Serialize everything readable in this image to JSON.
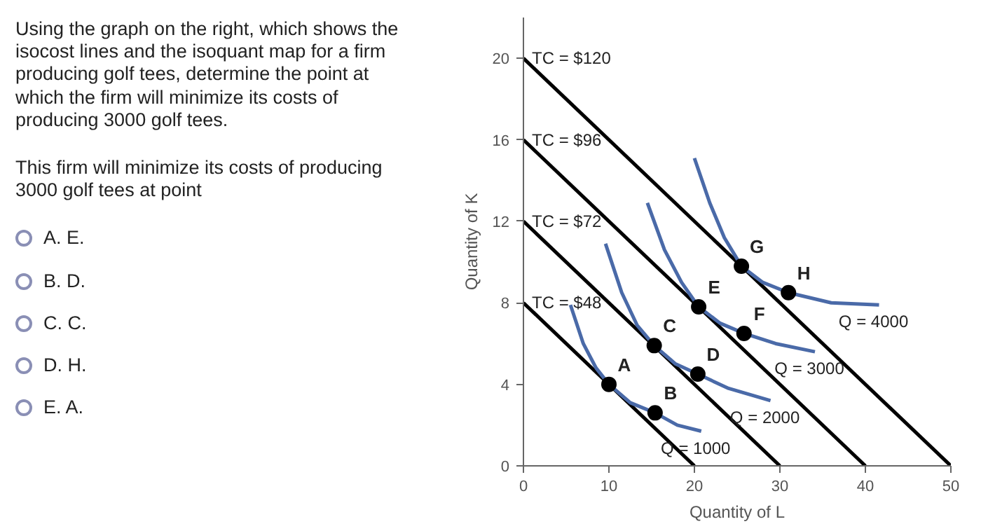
{
  "chart_data": {
    "type": "line",
    "xlabel": "Quantity of L",
    "ylabel": "Quantity of K",
    "xlim": [
      0,
      50
    ],
    "ylim": [
      0,
      22
    ],
    "xticks": [
      0,
      10,
      20,
      30,
      40,
      50
    ],
    "yticks": [
      0,
      4,
      8,
      12,
      16,
      20
    ],
    "grid": false,
    "marker": "none",
    "line_style": "solid",
    "series": [
      {
        "color": "#000000",
        "x": [
          0,
          20
        ],
        "values": [
          8,
          0
        ]
      },
      {
        "color": "#000000",
        "x": [
          0,
          30
        ],
        "values": [
          12,
          0
        ]
      },
      {
        "color": "#000000",
        "x": [
          0,
          40
        ],
        "values": [
          16,
          0
        ]
      },
      {
        "color": "#000000",
        "x": [
          0,
          50
        ],
        "values": [
          20,
          0
        ]
      },
      {
        "color": "#4a6aa8",
        "x": [
          5.5,
          7,
          8.5,
          10,
          12.5,
          15.4,
          18,
          20.8
        ],
        "values": [
          7.9,
          6,
          4.8,
          4,
          3.1,
          2.6,
          2.0,
          1.7
        ]
      },
      {
        "color": "#4a6aa8",
        "x": [
          9.6,
          11.5,
          13.3,
          15.3,
          17.8,
          20.4,
          24,
          28.9
        ],
        "values": [
          10.9,
          8.5,
          6.9,
          5.9,
          5.0,
          4.5,
          3.8,
          3.2
        ]
      },
      {
        "color": "#4a6aa8",
        "x": [
          14.5,
          16.5,
          18.5,
          20.5,
          23,
          25.8,
          29.5,
          34.1
        ],
        "values": [
          12.9,
          10.6,
          9.0,
          7.8,
          7.0,
          6.5,
          6.0,
          5.6
        ]
      },
      {
        "color": "#4a6aa8",
        "x": [
          20,
          21.8,
          23.5,
          25.5,
          28,
          31,
          36,
          41.6
        ],
        "values": [
          15.1,
          12.9,
          11.2,
          9.8,
          9.0,
          8.5,
          8.0,
          7.9
        ]
      },
      {
        "type": "scatter",
        "marker": "circle",
        "color": "#000000",
        "x": [
          10,
          15.4,
          15.3,
          20.4,
          20.5,
          25.8,
          25.5,
          31
        ],
        "values": [
          4,
          2.6,
          5.9,
          4.5,
          7.8,
          6.5,
          9.8,
          8.5
        ]
      }
    ],
    "annotations": [
      "Using the graph on the right, which shows the isocost lines and the isoquant map for a firm producing golf tees, determine the point at which the firm will minimize its costs of producing 3000 golf tees.",
      "This firm will minimize its costs of producing 3000 golf tees at point",
      "A. E.",
      "B. D.",
      "C. C.",
      "D. H.",
      "E. A.",
      {
        "text": "TC = $120",
        "x": 0,
        "y": 20
      },
      {
        "text": "TC = $96",
        "x": 0,
        "y": 16
      },
      {
        "text": "TC = $72",
        "x": 0,
        "y": 12
      },
      {
        "text": "TC = $48",
        "x": 0,
        "y": 8
      },
      {
        "text": "Q = 1000",
        "x": 20.8,
        "y": 1.7
      },
      {
        "text": "Q = 2000",
        "x": 28.9,
        "y": 3.2
      },
      {
        "text": "Q = 3000",
        "x": 34.1,
        "y": 5.6
      },
      {
        "text": "Q = 4000",
        "x": 41.6,
        "y": 7.9
      },
      {
        "text": "A",
        "x": 10,
        "y": 4
      },
      {
        "text": "B",
        "x": 15.4,
        "y": 2.6
      },
      {
        "text": "C",
        "x": 15.3,
        "y": 5.9
      },
      {
        "text": "D",
        "x": 20.4,
        "y": 4.5
      },
      {
        "text": "E",
        "x": 20.5,
        "y": 7.8
      },
      {
        "text": "F",
        "x": 25.8,
        "y": 6.5
      },
      {
        "text": "G",
        "x": 25.5,
        "y": 9.8
      },
      {
        "text": "H",
        "x": 31,
        "y": 8.5
      }
    ]
  }
}
